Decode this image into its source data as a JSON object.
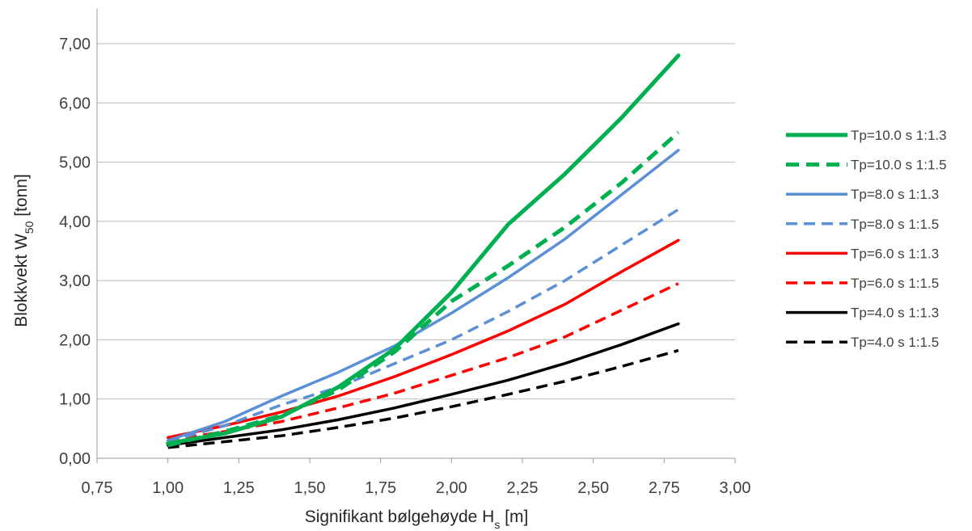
{
  "chart_data": {
    "type": "line",
    "title": "",
    "xlabel": {
      "main": "Signifikant bølgehøyde H",
      "sub": "s",
      "unit": " [m]"
    },
    "ylabel": {
      "main": "Blokkvekt W",
      "sub": "50",
      "unit": " [tonn]"
    },
    "xlim": [
      0.75,
      3.0
    ],
    "ylim": [
      0.0,
      7.0
    ],
    "x_ticks": [
      0.75,
      1.0,
      1.25,
      1.5,
      1.75,
      2.0,
      2.25,
      2.5,
      2.75,
      3.0
    ],
    "x_tick_labels": [
      "0,75",
      "1,00",
      "1,25",
      "1,50",
      "1,75",
      "2,00",
      "2,25",
      "2,50",
      "2,75",
      "3,00"
    ],
    "y_ticks": [
      0,
      1,
      2,
      3,
      4,
      5,
      6,
      7
    ],
    "y_tick_labels": [
      "0,00",
      "1,00",
      "2,00",
      "3,00",
      "4,00",
      "5,00",
      "6,00",
      "7,00"
    ],
    "grid": "horizontal",
    "legend_position": "right",
    "x": [
      1.0,
      1.2,
      1.4,
      1.6,
      1.8,
      2.0,
      2.2,
      2.4,
      2.6,
      2.8
    ],
    "series": [
      {
        "name": "Tp=10.0 s 1:1.3",
        "color": "#00b050",
        "style": "solid",
        "weight": "thick",
        "values": [
          0.25,
          0.42,
          0.7,
          1.2,
          1.85,
          2.8,
          3.95,
          4.8,
          5.75,
          6.8
        ]
      },
      {
        "name": "Tp=10.0 s 1:1.5",
        "color": "#00b050",
        "style": "dashed",
        "weight": "thick",
        "values": [
          0.22,
          0.45,
          0.72,
          1.15,
          1.8,
          2.65,
          3.25,
          3.9,
          4.65,
          5.5
        ]
      },
      {
        "name": "Tp=8.0 s 1:1.3",
        "color": "#5b8fd6",
        "style": "solid",
        "weight": "normal",
        "values": [
          0.3,
          0.62,
          1.05,
          1.45,
          1.9,
          2.45,
          3.05,
          3.7,
          4.45,
          5.2
        ]
      },
      {
        "name": "Tp=8.0 s 1:1.5",
        "color": "#5b8fd6",
        "style": "dashed",
        "weight": "normal",
        "values": [
          0.28,
          0.55,
          0.9,
          1.2,
          1.6,
          2.0,
          2.48,
          3.0,
          3.6,
          4.2
        ]
      },
      {
        "name": "Tp=6.0 s 1:1.3",
        "color": "#ff0000",
        "style": "solid",
        "weight": "normal",
        "values": [
          0.35,
          0.55,
          0.78,
          1.05,
          1.38,
          1.75,
          2.15,
          2.6,
          3.15,
          3.68
        ]
      },
      {
        "name": "Tp=6.0 s 1:1.5",
        "color": "#ff0000",
        "style": "dashed",
        "weight": "normal",
        "values": [
          0.3,
          0.45,
          0.62,
          0.85,
          1.1,
          1.4,
          1.7,
          2.05,
          2.5,
          2.95
        ]
      },
      {
        "name": "Tp=4.0 s 1:1.3",
        "color": "#000000",
        "style": "solid",
        "weight": "normal",
        "values": [
          0.22,
          0.35,
          0.48,
          0.65,
          0.85,
          1.08,
          1.32,
          1.6,
          1.92,
          2.27
        ]
      },
      {
        "name": "Tp=4.0 s 1:1.5",
        "color": "#000000",
        "style": "dashed",
        "weight": "normal",
        "values": [
          0.18,
          0.28,
          0.38,
          0.52,
          0.68,
          0.87,
          1.08,
          1.3,
          1.55,
          1.82
        ]
      }
    ]
  }
}
